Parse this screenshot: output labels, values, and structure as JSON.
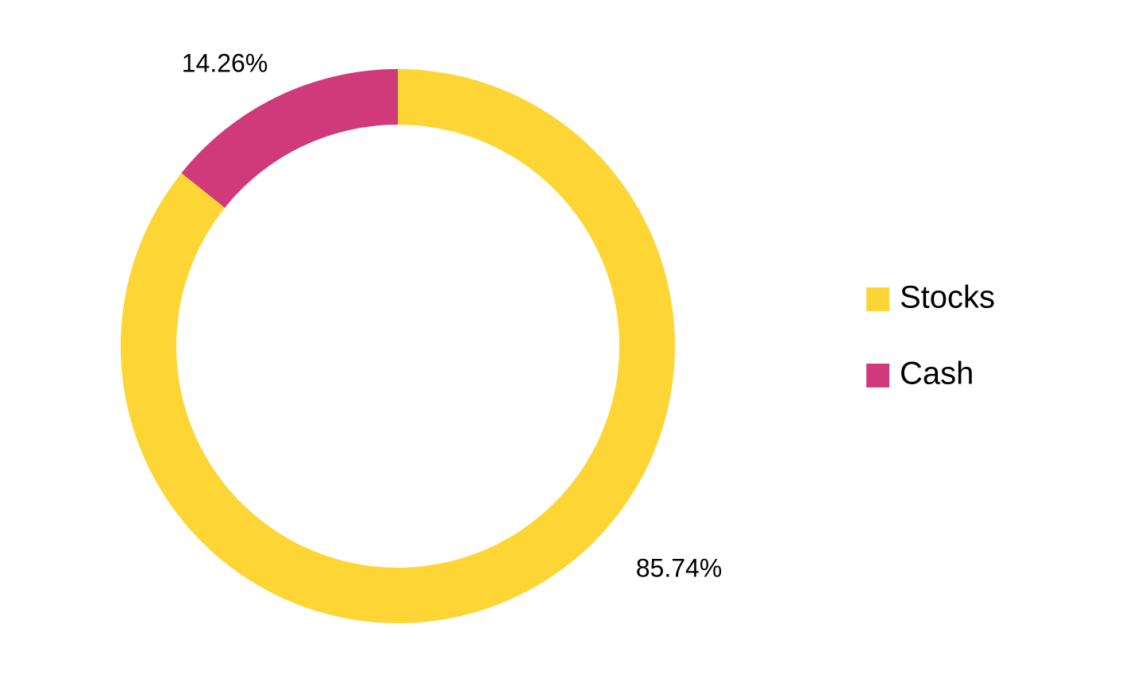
{
  "chart_data": {
    "type": "donut",
    "categories": [
      "Stocks",
      "Cash"
    ],
    "values": [
      85.74,
      14.26
    ],
    "value_labels": [
      "85.74%",
      "14.26%"
    ],
    "colors": [
      "#FDD535",
      "#D0397A"
    ],
    "legend": "right"
  }
}
